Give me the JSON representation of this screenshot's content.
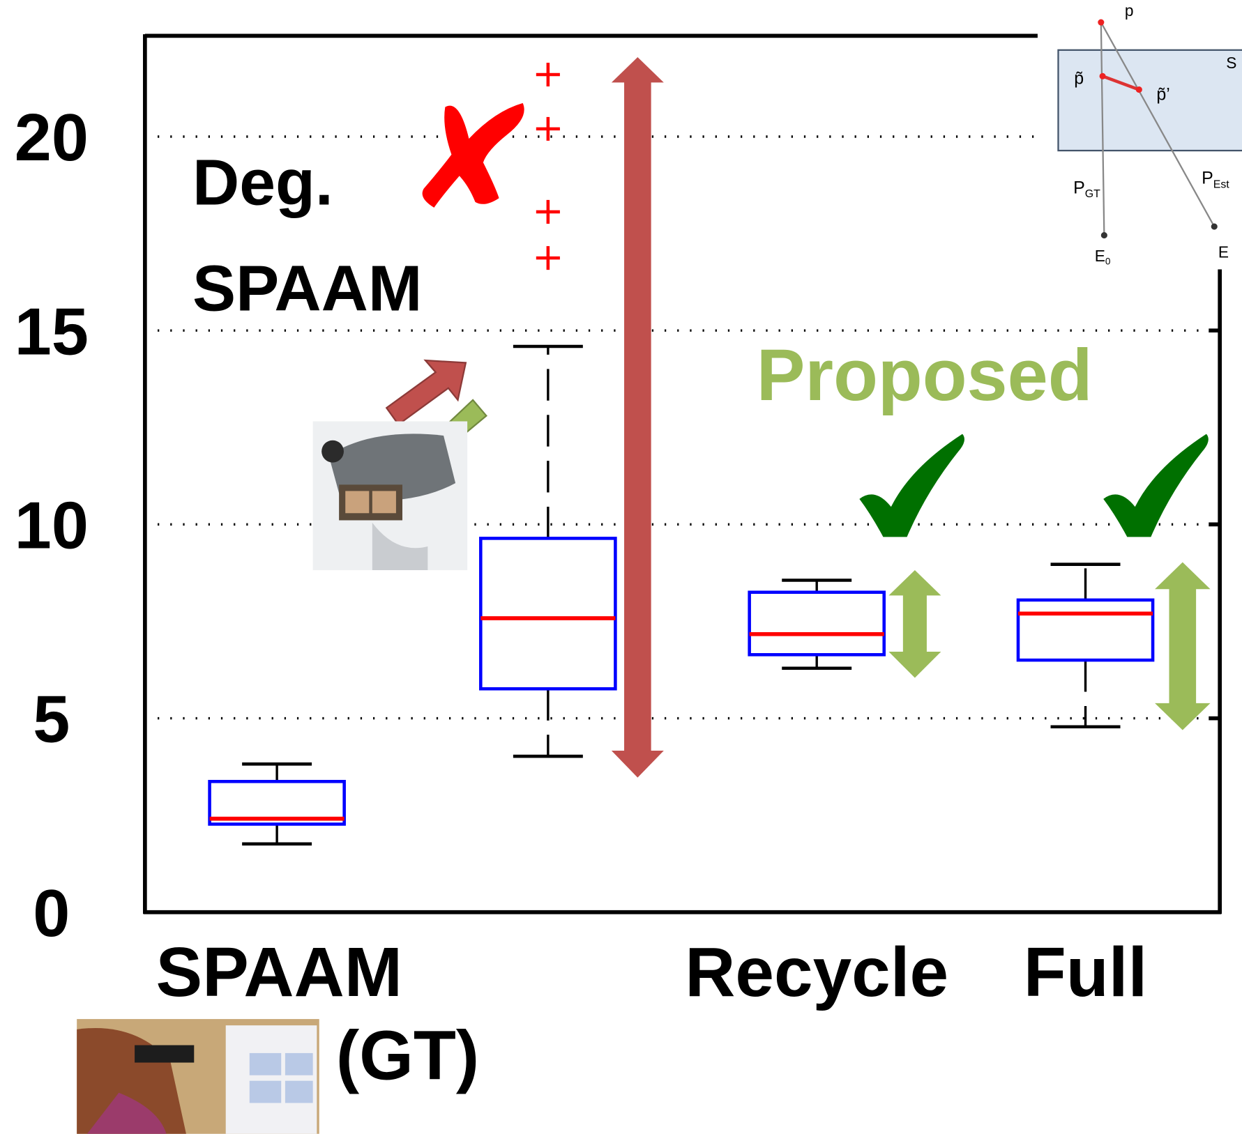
{
  "chart_data": {
    "type": "box",
    "categories": [
      "SPAAM (GT)",
      null,
      "Recycle",
      "Full"
    ],
    "boxes": [
      {
        "whislo": 1.76,
        "q1": 2.27,
        "med": 2.41,
        "q3": 3.37,
        "whishi": 3.82,
        "fliers": []
      },
      {
        "whislo": 4.02,
        "q1": 5.76,
        "med": 7.58,
        "q3": 9.64,
        "whishi": 14.59,
        "fliers": [
          21.6,
          20.2,
          18.06,
          16.87
        ]
      },
      {
        "whislo": 6.29,
        "q1": 6.64,
        "med": 7.17,
        "q3": 8.25,
        "whishi": 8.56,
        "fliers": []
      },
      {
        "whislo": 4.78,
        "q1": 6.5,
        "med": 7.7,
        "q3": 8.05,
        "whishi": 8.97,
        "fliers": []
      }
    ],
    "box_color": "#0000ff",
    "median_color": "#ff0000",
    "whisker_color": "#000000",
    "flier_color": "#ff0000",
    "ylim": [
      0,
      22.6
    ],
    "yticks": [
      0,
      5,
      10,
      15,
      20
    ],
    "grid": true,
    "annotations": {
      "degraded": [
        "Deg.",
        "SPAAM"
      ],
      "proposed": "Proposed"
    }
  },
  "inset": {
    "p": "p",
    "s": "S",
    "p_tilde": "p̃",
    "p_tilde_prime": "p̃’",
    "p_gt": {
      "main": "P",
      "sub": "GT"
    },
    "p_est": {
      "main": "P",
      "sub": "Est"
    },
    "e0": {
      "main": "E",
      "sub": "0"
    },
    "e": "E"
  }
}
